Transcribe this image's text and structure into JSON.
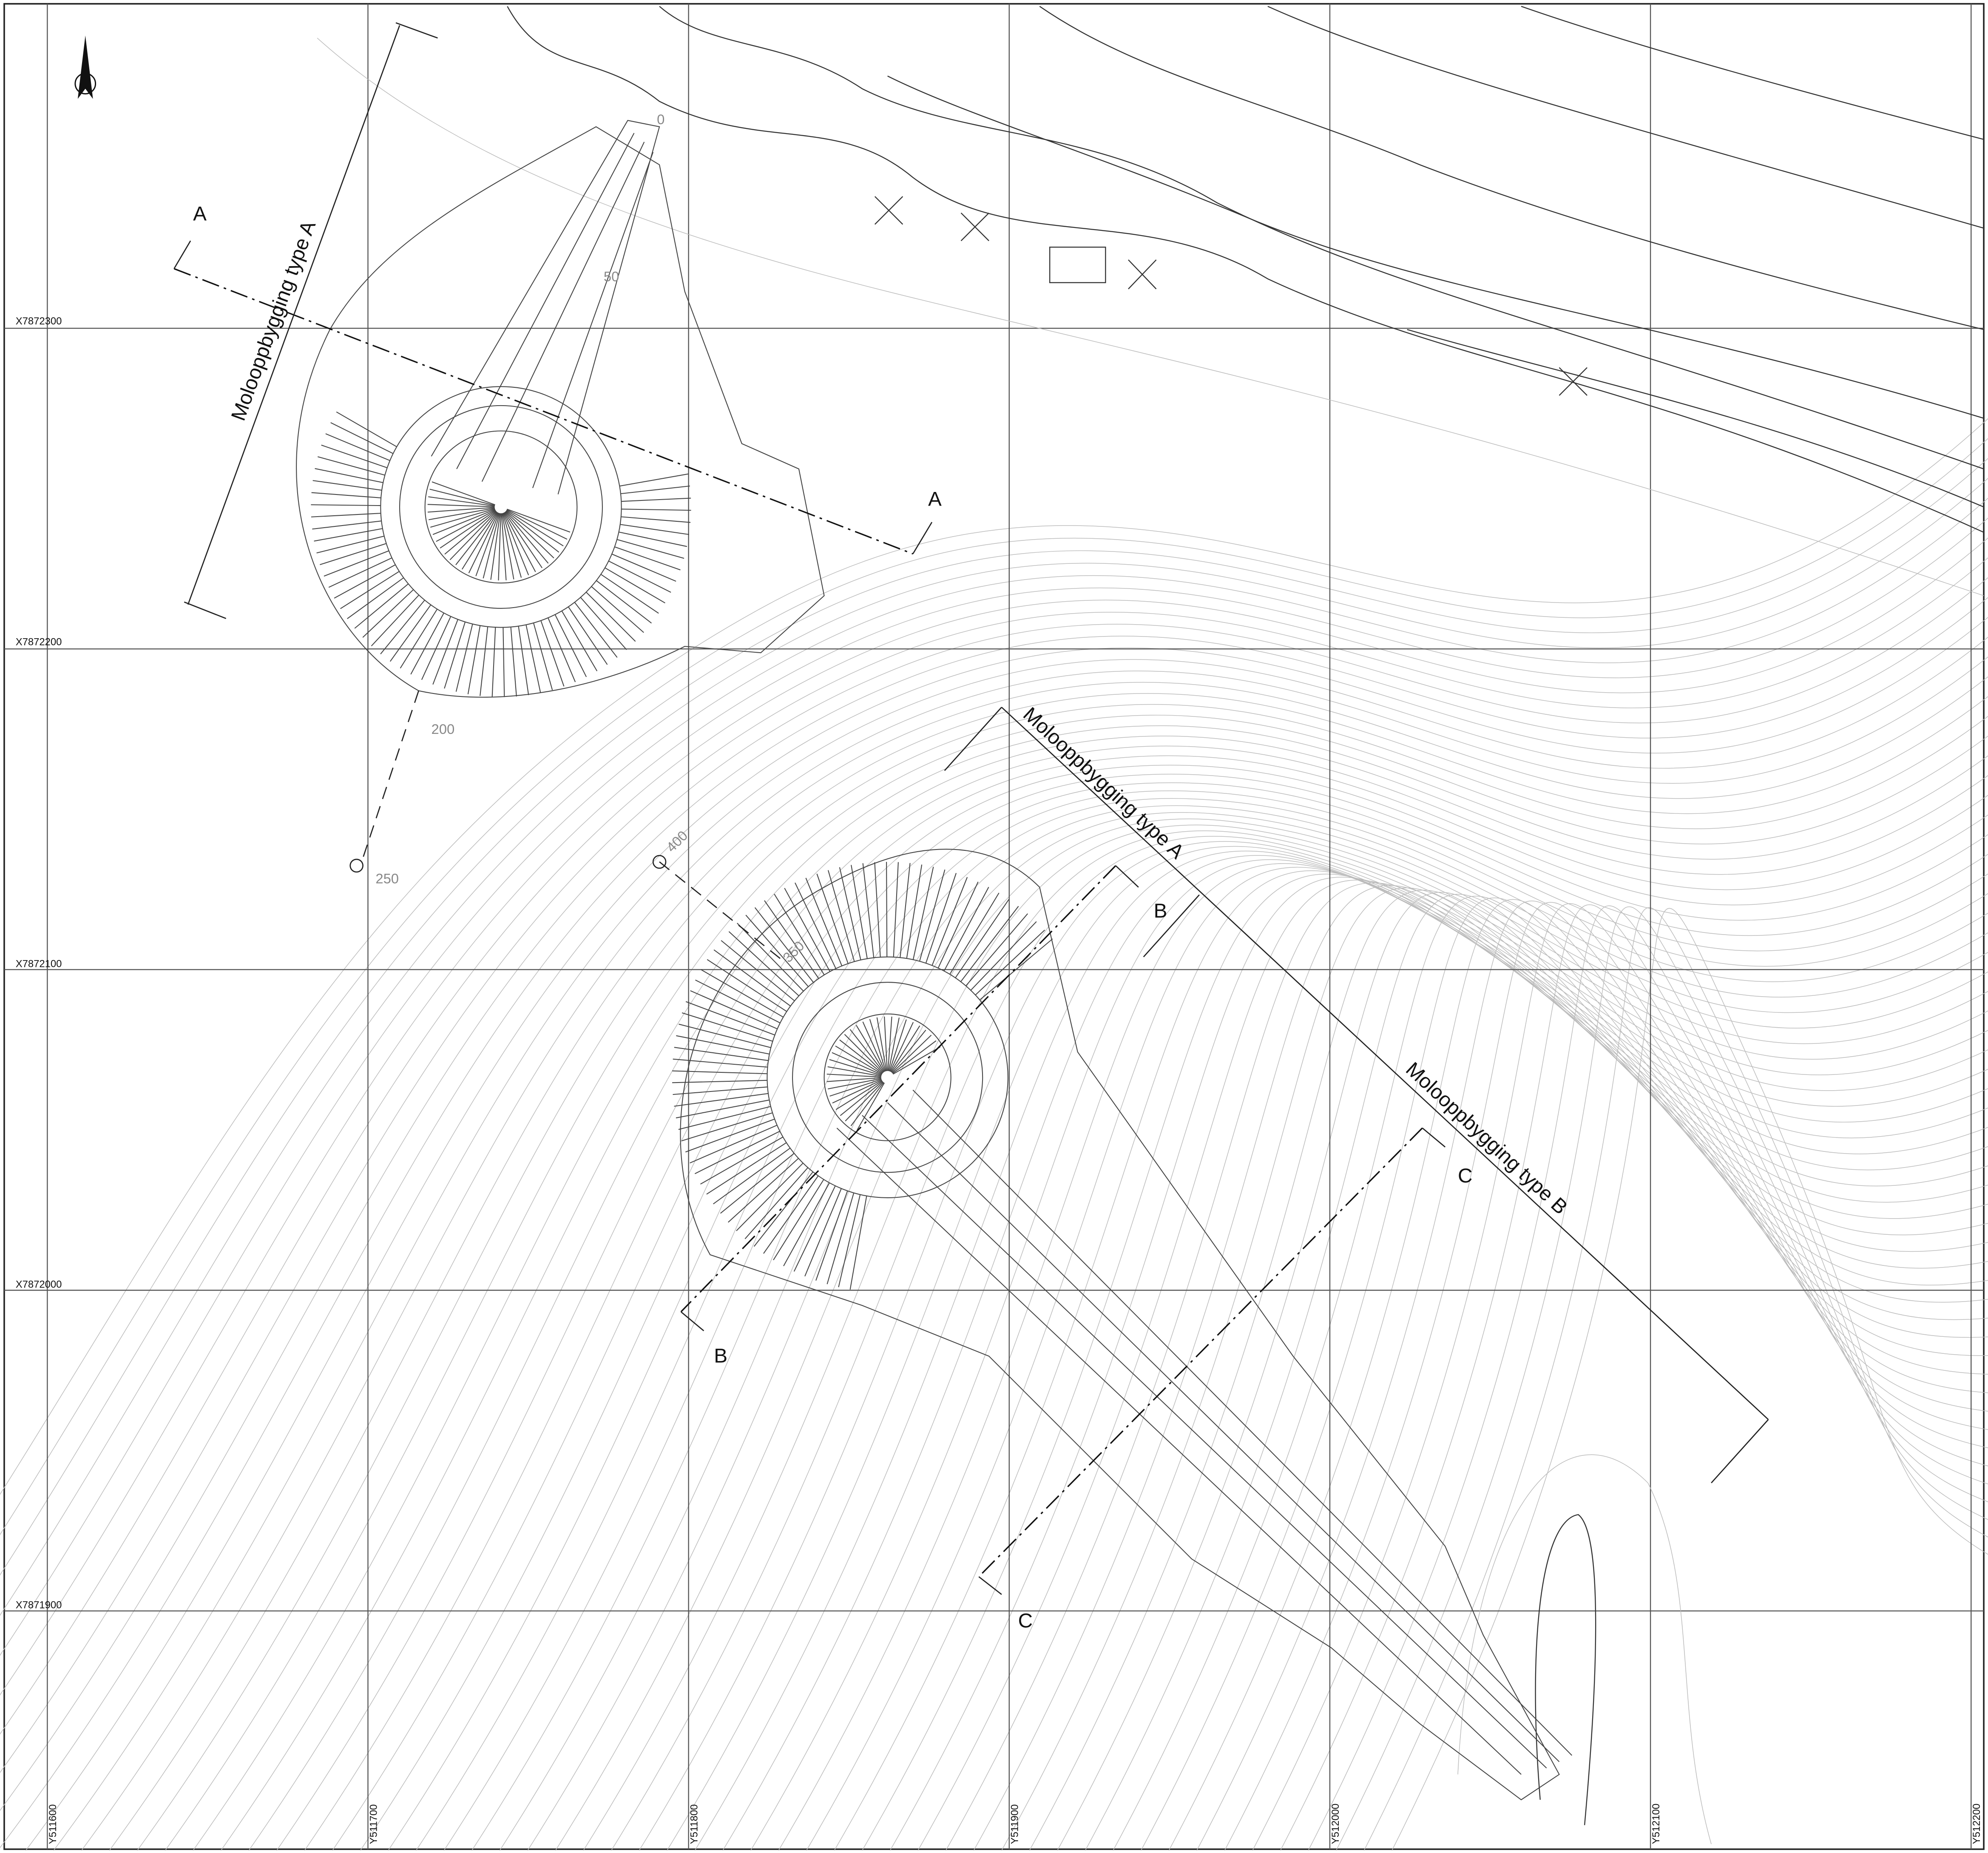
{
  "grid": {
    "x_labels": [
      "X7872300",
      "X7872200",
      "X7872100",
      "X7872000",
      "X7871900"
    ],
    "y_labels": [
      "Y511600",
      "Y511700",
      "Y511800",
      "Y511900",
      "Y512000",
      "Y512100",
      "Y512200"
    ]
  },
  "labels": [
    "Molooppbygging type A",
    "Molooppbygging type A",
    "Molooppbygging type B"
  ],
  "sections": [
    "A",
    "A",
    "B",
    "B",
    "C",
    "C"
  ],
  "chainage": [
    "0",
    "50",
    "200",
    "250",
    "400",
    "350"
  ]
}
